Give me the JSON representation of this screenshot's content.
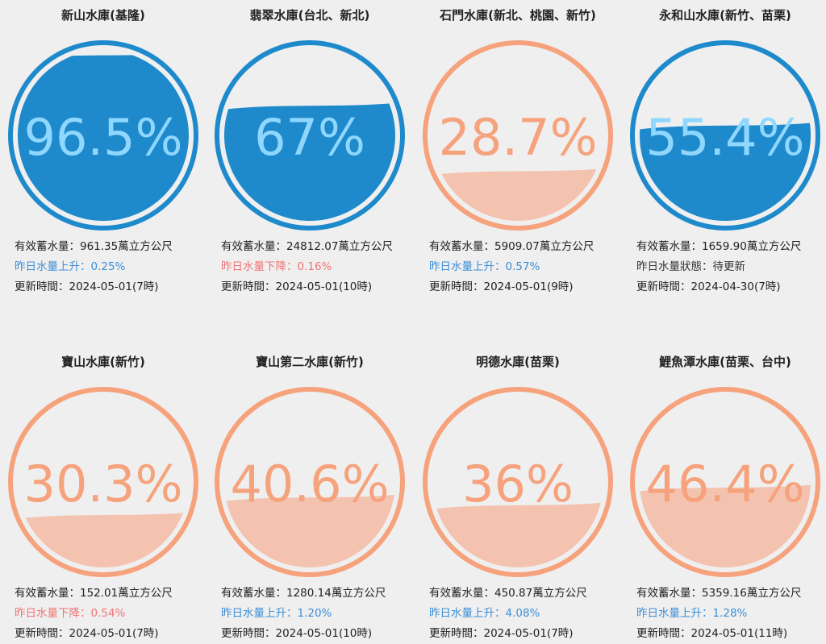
{
  "colors": {
    "blue_ring": "#1e8acb",
    "blue_fill": "#1e8acb",
    "blue_text": "#8fd7ff",
    "blue_text_over": "#0d4a78",
    "orange_ring": "#f6a27c",
    "orange_fill": "#f3c3b0",
    "orange_text": "#f6a27c",
    "up_text": "#3d8ed6",
    "down_text": "#ef7474"
  },
  "reservoirs": [
    {
      "name": "新山水庫(基隆)",
      "percent_label": "96.5%",
      "percent": 96.5,
      "theme": "blue",
      "storage": "有效蓄水量：961.35萬立方公尺",
      "change": "昨日水量上升：0.25%",
      "change_dir": "up",
      "updated": "更新時間：2024-05-01(7時)"
    },
    {
      "name": "翡翠水庫(台北、新北)",
      "percent_label": "67%",
      "percent": 67,
      "theme": "blue",
      "storage": "有效蓄水量：24812.07萬立方公尺",
      "change": "昨日水量下降：0.16%",
      "change_dir": "down",
      "updated": "更新時間：2024-05-01(10時)"
    },
    {
      "name": "石門水庫(新北、桃園、新竹)",
      "percent_label": "28.7%",
      "percent": 28.7,
      "theme": "orange",
      "storage": "有效蓄水量：5909.07萬立方公尺",
      "change": "昨日水量上升：0.57%",
      "change_dir": "up",
      "updated": "更新時間：2024-05-01(9時)"
    },
    {
      "name": "永和山水庫(新竹、苗栗)",
      "percent_label": "55.4%",
      "percent": 55.4,
      "theme": "blue",
      "storage": "有效蓄水量：1659.90萬立方公尺",
      "change": "昨日水量狀態：待更新",
      "change_dir": "neutral",
      "updated": "更新時間：2024-04-30(7時)"
    },
    {
      "name": "寶山水庫(新竹)",
      "percent_label": "30.3%",
      "percent": 30.3,
      "theme": "orange",
      "storage": "有效蓄水量：152.01萬立方公尺",
      "change": "昨日水量下降：0.54%",
      "change_dir": "down",
      "updated": "更新時間：2024-05-01(7時)"
    },
    {
      "name": "寶山第二水庫(新竹)",
      "percent_label": "40.6%",
      "percent": 40.6,
      "theme": "orange",
      "storage": "有效蓄水量：1280.14萬立方公尺",
      "change": "昨日水量上升：1.20%",
      "change_dir": "up",
      "updated": "更新時間：2024-05-01(10時)"
    },
    {
      "name": "明德水庫(苗栗)",
      "percent_label": "36%",
      "percent": 36,
      "theme": "orange",
      "storage": "有效蓄水量：450.87萬立方公尺",
      "change": "昨日水量上升：4.08%",
      "change_dir": "up",
      "updated": "更新時間：2024-05-01(7時)"
    },
    {
      "name": "鯉魚潭水庫(苗栗、台中)",
      "percent_label": "46.4%",
      "percent": 46.4,
      "theme": "orange",
      "storage": "有效蓄水量：5359.16萬立方公尺",
      "change": "昨日水量上升：1.28%",
      "change_dir": "up",
      "updated": "更新時間：2024-05-01(11時)"
    }
  ]
}
